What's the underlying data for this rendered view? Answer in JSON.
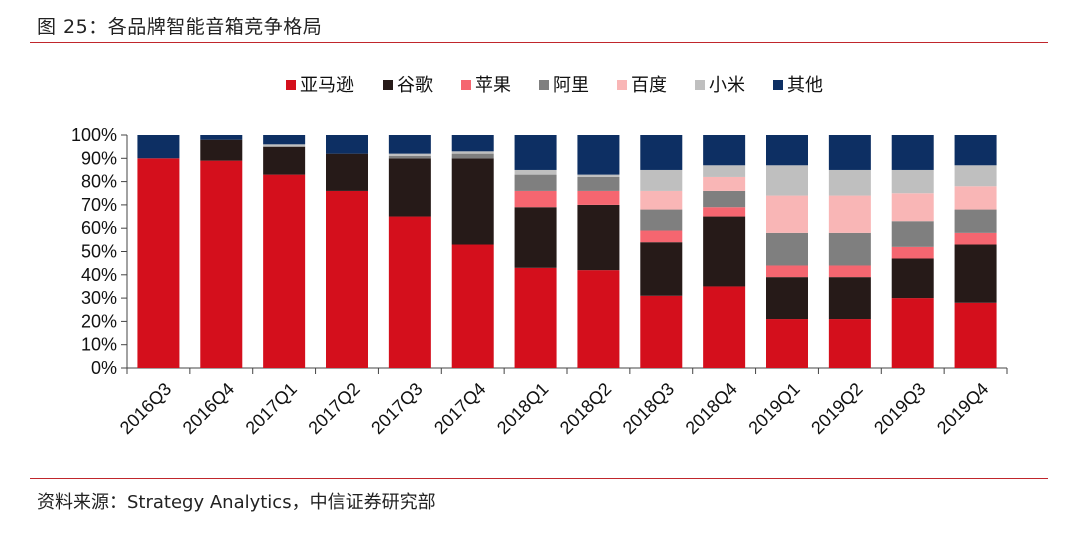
{
  "figure": {
    "title": "图 25：各品牌智能音箱竞争格局",
    "source": "资料来源：Strategy Analytics，中信证券研究部"
  },
  "chart_data": {
    "type": "bar",
    "stacked": true,
    "categories": [
      "2016Q3",
      "2016Q4",
      "2017Q1",
      "2017Q2",
      "2017Q3",
      "2017Q4",
      "2018Q1",
      "2018Q2",
      "2018Q3",
      "2018Q4",
      "2019Q1",
      "2019Q2",
      "2019Q3",
      "2019Q4"
    ],
    "y_ticks": [
      "0%",
      "10%",
      "20%",
      "30%",
      "40%",
      "50%",
      "60%",
      "70%",
      "80%",
      "90%",
      "100%"
    ],
    "ylim": [
      0,
      100
    ],
    "legend_position": "top",
    "series": [
      {
        "name": "亚马逊",
        "color": "#d40f1c",
        "values": [
          90,
          89,
          83,
          76,
          65,
          53,
          43,
          42,
          31,
          35,
          21,
          21,
          30,
          28
        ]
      },
      {
        "name": "谷歌",
        "color": "#261a18",
        "values": [
          0,
          9,
          12,
          16,
          25,
          37,
          26,
          28,
          23,
          30,
          18,
          18,
          17,
          25
        ]
      },
      {
        "name": "苹果",
        "color": "#f56670",
        "values": [
          0,
          0,
          0,
          0,
          0,
          0,
          7,
          6,
          5,
          4,
          5,
          5,
          5,
          5
        ]
      },
      {
        "name": "阿里",
        "color": "#7f7f7f",
        "values": [
          0,
          0,
          0,
          0,
          1,
          2,
          7,
          6,
          9,
          7,
          14,
          14,
          11,
          10
        ]
      },
      {
        "name": "百度",
        "color": "#f9b6b6",
        "values": [
          0,
          0,
          0,
          0,
          0,
          0,
          0,
          0,
          8,
          6,
          16,
          16,
          12,
          10
        ]
      },
      {
        "name": "小米",
        "color": "#bfbfbf",
        "values": [
          0,
          0,
          1,
          0,
          1,
          1,
          2,
          1,
          9,
          5,
          13,
          11,
          10,
          9
        ]
      },
      {
        "name": "其他",
        "color": "#0d2f63",
        "values": [
          10,
          2,
          4,
          8,
          8,
          7,
          15,
          17,
          15,
          13,
          13,
          15,
          15,
          13
        ]
      }
    ]
  }
}
